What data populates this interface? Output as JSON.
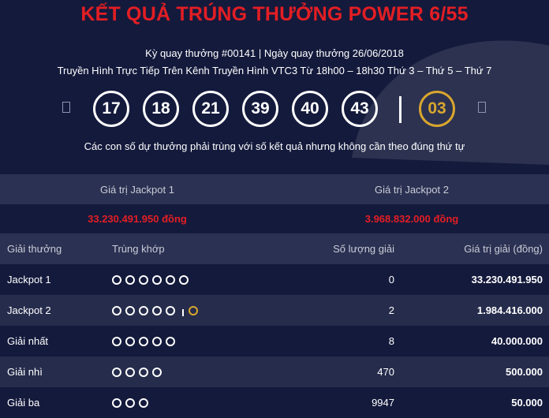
{
  "title": "KẾT QUẢ TRÚNG THƯỞNG POWER 6/55",
  "draw_info": "Kỳ quay thưởng #00141 | Ngày quay thưởng 26/06/2018",
  "broadcast": "Truyền Hình Trực Tiếp Trên Kênh Truyền Hình VTC3 Từ 18h00 – 18h30 Thứ 3 – Thứ 5 – Thứ 7",
  "balls": [
    "17",
    "18",
    "21",
    "39",
    "40",
    "43"
  ],
  "power_ball": "03",
  "note": "Các con số dự thưởng phải trùng với số kết quả nhưng không cần theo đúng thứ tự",
  "jackpot": {
    "label_1": "Giá trị Jackpot 1",
    "label_2": "Giá trị Jackpot 2",
    "value_1": "33.230.491.950 đồng",
    "value_2": "3.968.832.000 đồng"
  },
  "table": {
    "headers": [
      "Giải thưởng",
      "Trùng khớp",
      "Số lượng giải",
      "Giá trị giải (đồng)"
    ],
    "rows": [
      {
        "prize": "Jackpot 1",
        "match": 6,
        "power": false,
        "count": "0",
        "value": "33.230.491.950"
      },
      {
        "prize": "Jackpot 2",
        "match": 5,
        "power": true,
        "count": "2",
        "value": "1.984.416.000"
      },
      {
        "prize": "Giải nhất",
        "match": 5,
        "power": false,
        "count": "8",
        "value": "40.000.000"
      },
      {
        "prize": "Giải nhì",
        "match": 4,
        "power": false,
        "count": "470",
        "value": "500.000"
      },
      {
        "prize": "Giải ba",
        "match": 3,
        "power": false,
        "count": "9947",
        "value": "50.000"
      }
    ]
  },
  "colors": {
    "accent_red": "#e31e24",
    "power_gold": "#d9a62e",
    "background": "#141a3c"
  },
  "icons": {
    "prev": "prev-arrow-icon",
    "next": "next-arrow-icon"
  }
}
